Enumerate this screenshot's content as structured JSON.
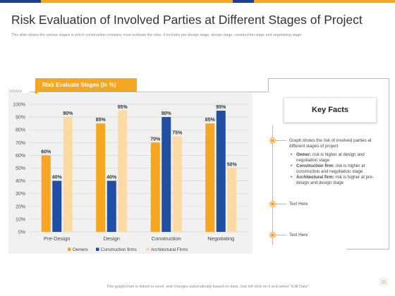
{
  "title": "Risk Evaluation of Involved Parties at Different Stages of Project",
  "subtitle": "This slide shows the various stages in which construction company most evaluate the risks. It includes pre-design stage, design stage, construction stage and negotiating stage",
  "chart_tab_label": "Risk Evaluate Stages (in %)",
  "chevrons": ">>>>>",
  "key_facts": {
    "heading": "Key Facts",
    "fact1": "Graph shows the risk of involved parties at different stages of project",
    "bullets": [
      {
        "label": "Owner:",
        "text": " risk is higher at design and negotiation stage"
      },
      {
        "label": "Construction firm:",
        "text": " risk is higher at construction and negotiation stage"
      },
      {
        "label": "Architectural firm:",
        "text": " risk is higher at pre-design and design stage"
      }
    ],
    "fact2": "Text Here",
    "fact3": "Text Here"
  },
  "footer": "This graph/chart is linked to excel, and changes automatically based on data. Just left click on it and select \"Edit Data\".",
  "colors": {
    "accent": "#f5a623",
    "owners": "#f5a623",
    "construction": "#1f4ea3",
    "architectural": "#fbdaa3",
    "navy": "#1f3f8f"
  },
  "chart_data": {
    "type": "bar",
    "categories": [
      "Pre-Design",
      "Design",
      "Construction",
      "Negotiating"
    ],
    "series": [
      {
        "name": "Owners",
        "values": [
          60,
          85,
          70,
          85
        ]
      },
      {
        "name": "Construction firms",
        "values": [
          40,
          40,
          90,
          95
        ]
      },
      {
        "name": "Architectural Firms",
        "values": [
          90,
          95,
          75,
          50
        ]
      }
    ],
    "ylim": [
      0,
      100
    ],
    "yticks": [
      "0%",
      "10%",
      "20%",
      "30%",
      "40%",
      "50%",
      "60%",
      "70%",
      "80%",
      "90%",
      "100%"
    ],
    "value_suffix": "%",
    "gridlines": true,
    "legend_position": "bottom"
  }
}
